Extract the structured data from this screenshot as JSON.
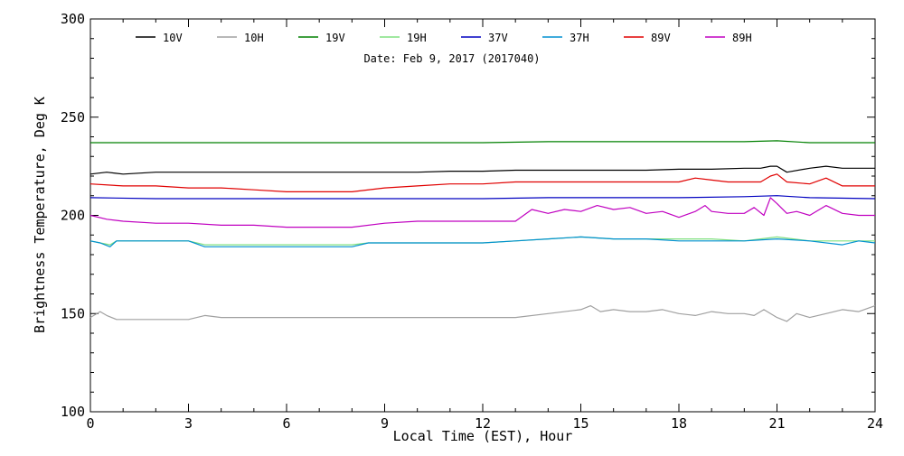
{
  "chart_data": {
    "type": "line",
    "title": "",
    "date_text": "Date: Feb  9, 2017 (2017040)",
    "xlabel": "Local Time (EST), Hour",
    "ylabel": "Brightness Temperature, Deg K",
    "xlim": [
      0,
      24
    ],
    "ylim": [
      100,
      300
    ],
    "xticks": [
      0,
      3,
      6,
      9,
      12,
      15,
      18,
      21,
      24
    ],
    "xtick_labels": [
      "0",
      "3",
      "6",
      "9",
      "12",
      "15",
      "18",
      "21",
      "24"
    ],
    "yticks": [
      100,
      150,
      200,
      250,
      300
    ],
    "ytick_labels": [
      "100",
      "150",
      "200",
      "250",
      "300"
    ],
    "grid": false,
    "legend_position": "top",
    "series": [
      {
        "name": "10V",
        "color": "#000000",
        "x": [
          0,
          0.5,
          1,
          2,
          3,
          4,
          5,
          6,
          7,
          8,
          9,
          10,
          11,
          12,
          13,
          14,
          15,
          16,
          17,
          18,
          19,
          20,
          20.5,
          20.8,
          21.0,
          21.3,
          22,
          22.5,
          23,
          24
        ],
        "y": [
          221,
          222,
          221,
          222,
          222,
          222,
          222,
          222,
          222,
          222,
          222,
          222,
          222.5,
          222.5,
          223,
          223,
          223,
          223,
          223,
          223.5,
          223.5,
          224,
          224,
          225,
          225,
          222,
          224,
          225,
          224,
          224
        ]
      },
      {
        "name": "10H",
        "color": "#a0a0a0",
        "x": [
          0,
          0.3,
          0.5,
          0.8,
          1,
          2,
          3,
          3.5,
          4,
          5,
          6,
          7,
          8,
          9,
          10,
          11,
          12,
          13,
          14,
          15,
          15.3,
          15.6,
          16,
          16.5,
          17,
          17.5,
          18,
          18.5,
          19,
          19.5,
          20,
          20.3,
          20.6,
          21,
          21.3,
          21.6,
          22,
          22.5,
          23,
          23.5,
          24
        ],
        "y": [
          148,
          151,
          149,
          147,
          147,
          147,
          147,
          149,
          148,
          148,
          148,
          148,
          148,
          148,
          148,
          148,
          148,
          148,
          150,
          152,
          154,
          151,
          152,
          151,
          151,
          152,
          150,
          149,
          151,
          150,
          150,
          149,
          152,
          148,
          146,
          150,
          148,
          150,
          152,
          151,
          154
        ]
      },
      {
        "name": "19V",
        "color": "#008000",
        "x": [
          0,
          2,
          4,
          6,
          8,
          10,
          12,
          14,
          16,
          18,
          20,
          21,
          22,
          24
        ],
        "y": [
          237,
          237,
          237,
          237,
          237,
          237,
          237,
          237.5,
          237.5,
          237.5,
          237.5,
          238,
          237,
          237
        ]
      },
      {
        "name": "19H",
        "color": "#80e080",
        "x": [
          0,
          0.3,
          0.6,
          0.8,
          1,
          2,
          3,
          3.5,
          4,
          5,
          6,
          7,
          8,
          8.5,
          9,
          10,
          11,
          12,
          13,
          14,
          15,
          16,
          17,
          18,
          19,
          20,
          21,
          22,
          23,
          24
        ],
        "y": [
          187,
          186,
          185,
          187,
          187,
          187,
          187,
          185,
          185,
          185,
          185,
          185,
          185,
          186,
          186,
          186,
          186,
          186,
          187,
          188,
          189,
          188,
          188,
          188,
          188,
          187,
          189,
          187,
          187,
          187
        ]
      },
      {
        "name": "37V",
        "color": "#0000c0",
        "x": [
          0,
          2,
          4,
          6,
          8,
          10,
          12,
          14,
          16,
          18,
          20,
          21,
          22,
          24
        ],
        "y": [
          209,
          208.5,
          208.5,
          208.5,
          208.5,
          208.5,
          208.5,
          209,
          209,
          209,
          209.5,
          210,
          209,
          208.5
        ]
      },
      {
        "name": "37H",
        "color": "#0090d0",
        "x": [
          0,
          0.3,
          0.6,
          0.8,
          1,
          2,
          3,
          3.5,
          4,
          5,
          6,
          7,
          8,
          8.5,
          9,
          10,
          11,
          12,
          13,
          14,
          15,
          16,
          17,
          18,
          19,
          20,
          21,
          22,
          23,
          23.5,
          24
        ],
        "y": [
          187,
          186,
          184,
          187,
          187,
          187,
          187,
          184,
          184,
          184,
          184,
          184,
          184,
          186,
          186,
          186,
          186,
          186,
          187,
          188,
          189,
          188,
          188,
          187,
          187,
          187,
          188,
          187,
          185,
          187,
          186
        ]
      },
      {
        "name": "89V",
        "color": "#e00000",
        "x": [
          0,
          1,
          2,
          3,
          4,
          5,
          6,
          7,
          8,
          9,
          10,
          11,
          12,
          13,
          14,
          15,
          16,
          17,
          18,
          18.5,
          19,
          19.5,
          20,
          20.5,
          20.8,
          21.0,
          21.3,
          22,
          22.5,
          23,
          24
        ],
        "y": [
          216,
          215,
          215,
          214,
          214,
          213,
          212,
          212,
          212,
          214,
          215,
          216,
          216,
          217,
          217,
          217,
          217,
          217,
          217,
          219,
          218,
          217,
          217,
          217,
          220,
          221,
          217,
          216,
          219,
          215,
          215
        ]
      },
      {
        "name": "89H",
        "color": "#c000c0",
        "x": [
          0,
          0.5,
          1,
          2,
          3,
          4,
          5,
          6,
          7,
          8,
          9,
          10,
          11,
          12,
          13,
          13.5,
          14,
          14.5,
          15,
          15.5,
          16,
          16.5,
          17,
          17.5,
          18,
          18.5,
          18.8,
          19,
          19.5,
          20,
          20.3,
          20.6,
          20.8,
          21.0,
          21.3,
          21.6,
          22,
          22.5,
          23,
          23.5,
          24
        ],
        "y": [
          200,
          198,
          197,
          196,
          196,
          195,
          195,
          194,
          194,
          194,
          196,
          197,
          197,
          197,
          197,
          203,
          201,
          203,
          202,
          205,
          203,
          204,
          201,
          202,
          199,
          202,
          205,
          202,
          201,
          201,
          204,
          200,
          209,
          206,
          201,
          202,
          200,
          205,
          201,
          200,
          200
        ]
      }
    ]
  }
}
